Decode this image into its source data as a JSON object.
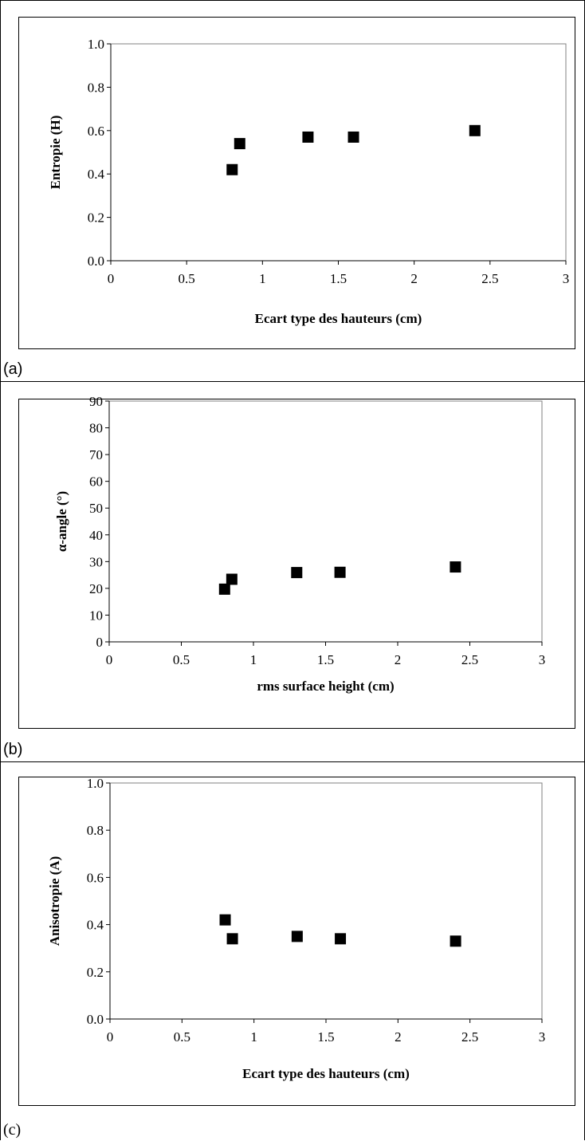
{
  "chart_data": [
    {
      "type": "scatter",
      "panel_label": "(a)",
      "title": "",
      "xlabel": "Ecart type des hauteurs (cm)",
      "ylabel": "Entropie (H)",
      "xlim": [
        0,
        3
      ],
      "ylim": [
        0,
        1
      ],
      "x_ticks": [
        "0",
        "0.5",
        "1",
        "1.5",
        "2",
        "2.5",
        "3"
      ],
      "y_ticks": [
        "0.0",
        "0.2",
        "0.4",
        "0.6",
        "0.8",
        "1.0"
      ],
      "points": [
        {
          "x": 0.8,
          "y": 0.42
        },
        {
          "x": 0.85,
          "y": 0.54
        },
        {
          "x": 1.3,
          "y": 0.57
        },
        {
          "x": 1.6,
          "y": 0.57
        },
        {
          "x": 2.4,
          "y": 0.6
        }
      ],
      "grid": false,
      "legend": "none"
    },
    {
      "type": "scatter",
      "panel_label": "(b)",
      "title": "",
      "xlabel": "rms surface height (cm)",
      "ylabel": "α-angle (°)",
      "xlim": [
        0,
        3
      ],
      "ylim": [
        0,
        90
      ],
      "x_ticks": [
        "0",
        "0.5",
        "1",
        "1.5",
        "2",
        "2.5",
        "3"
      ],
      "y_ticks": [
        "0",
        "10",
        "20",
        "30",
        "40",
        "50",
        "60",
        "70",
        "80",
        "90"
      ],
      "points": [
        {
          "x": 0.8,
          "y": 19.7
        },
        {
          "x": 0.85,
          "y": 23.4
        },
        {
          "x": 1.3,
          "y": 25.9
        },
        {
          "x": 1.6,
          "y": 26.0
        },
        {
          "x": 2.4,
          "y": 28.0
        }
      ],
      "grid": false,
      "legend": "none"
    },
    {
      "type": "scatter",
      "panel_label": "(c)",
      "title": "",
      "xlabel": "Ecart type des hauteurs (cm)",
      "ylabel": "Anisotropie (A)",
      "xlim": [
        0,
        3
      ],
      "ylim": [
        0,
        1
      ],
      "x_ticks": [
        "0",
        "0.5",
        "1",
        "1.5",
        "2",
        "2.5",
        "3"
      ],
      "y_ticks": [
        "0.0",
        "0.2",
        "0.4",
        "0.6",
        "0.8",
        "1.0"
      ],
      "points": [
        {
          "x": 0.8,
          "y": 0.42
        },
        {
          "x": 0.85,
          "y": 0.34
        },
        {
          "x": 1.3,
          "y": 0.35
        },
        {
          "x": 1.6,
          "y": 0.34
        },
        {
          "x": 2.4,
          "y": 0.33
        }
      ],
      "grid": false,
      "legend": "none"
    }
  ]
}
